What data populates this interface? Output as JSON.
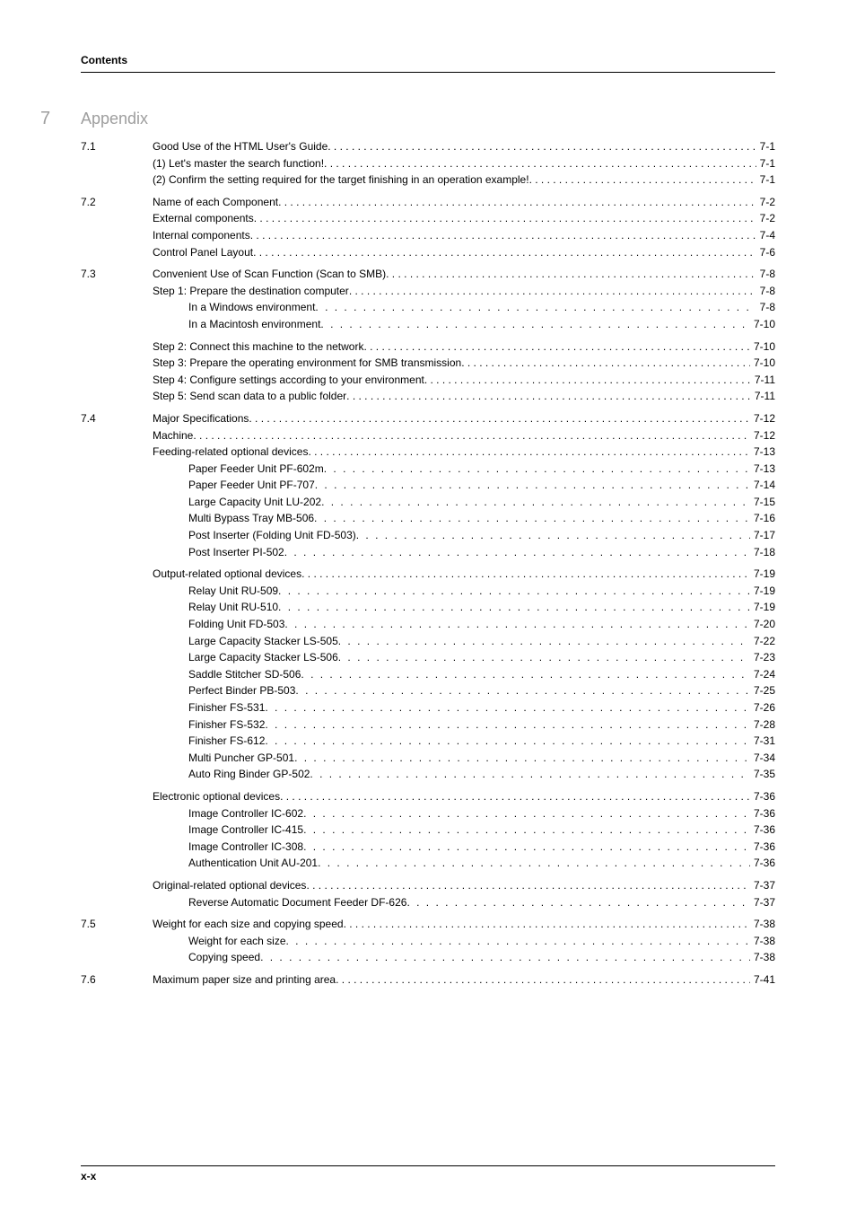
{
  "running_head": "Contents",
  "chapter": {
    "number": "7",
    "title": "Appendix"
  },
  "footer_page": "x-x",
  "colors": {
    "chapter_gray": "#9e9e9e",
    "text": "#000000",
    "bg": "#ffffff"
  },
  "entries": [
    {
      "type": "section",
      "num": "7.1",
      "label": "Good Use of the HTML User's Guide",
      "page": "7-1",
      "gap": false
    },
    {
      "type": "sub1",
      "label": "(1) Let's master the search function!",
      "page": "7-1"
    },
    {
      "type": "sub1",
      "label": "(2) Confirm the setting required for the target finishing in an operation example!",
      "page": "7-1"
    },
    {
      "type": "section",
      "num": "7.2",
      "label": "Name of each Component",
      "page": "7-2",
      "gap": true
    },
    {
      "type": "sub1",
      "label": "External components",
      "page": "7-2"
    },
    {
      "type": "sub1",
      "label": "Internal components",
      "page": "7-4"
    },
    {
      "type": "sub1",
      "label": "Control Panel Layout",
      "page": "7-6"
    },
    {
      "type": "section",
      "num": "7.3",
      "label": "Convenient Use of Scan Function (Scan to SMB)",
      "page": "7-8",
      "gap": true
    },
    {
      "type": "sub1",
      "label": "Step 1: Prepare the destination computer",
      "page": "7-8"
    },
    {
      "type": "sub2",
      "label": "In a Windows environment",
      "page": "7-8"
    },
    {
      "type": "sub2",
      "label": "In a Macintosh environment",
      "page": "7-10"
    },
    {
      "type": "sub1",
      "label": "Step 2: Connect this machine to the network",
      "page": "7-10",
      "gap": true
    },
    {
      "type": "sub1",
      "label": "Step 3: Prepare the operating environment for SMB transmission",
      "page": "7-10"
    },
    {
      "type": "sub1",
      "label": "Step 4: Configure settings according to your environment",
      "page": "7-11"
    },
    {
      "type": "sub1",
      "label": "Step 5: Send scan data to a public folder",
      "page": "7-11"
    },
    {
      "type": "section",
      "num": "7.4",
      "label": "Major Specifications",
      "page": "7-12",
      "gap": true
    },
    {
      "type": "sub1",
      "label": "Machine",
      "page": "7-12"
    },
    {
      "type": "sub1",
      "label": "Feeding-related optional devices",
      "page": "7-13"
    },
    {
      "type": "sub2",
      "label": "Paper Feeder Unit PF-602m",
      "page": "7-13"
    },
    {
      "type": "sub2",
      "label": "Paper Feeder Unit PF-707",
      "page": "7-14"
    },
    {
      "type": "sub2",
      "label": "Large Capacity Unit LU-202",
      "page": "7-15"
    },
    {
      "type": "sub2",
      "label": "Multi Bypass Tray MB-506",
      "page": "7-16"
    },
    {
      "type": "sub2",
      "label": "Post Inserter (Folding Unit FD-503)",
      "page": "7-17"
    },
    {
      "type": "sub2",
      "label": "Post Inserter PI-502",
      "page": "7-18"
    },
    {
      "type": "sub1",
      "label": "Output-related optional devices",
      "page": "7-19",
      "gap": true
    },
    {
      "type": "sub2",
      "label": "Relay Unit RU-509",
      "page": "7-19"
    },
    {
      "type": "sub2",
      "label": "Relay Unit RU-510",
      "page": "7-19"
    },
    {
      "type": "sub2",
      "label": "Folding Unit FD-503",
      "page": "7-20"
    },
    {
      "type": "sub2",
      "label": "Large Capacity Stacker LS-505",
      "page": "7-22"
    },
    {
      "type": "sub2",
      "label": "Large Capacity Stacker LS-506",
      "page": "7-23"
    },
    {
      "type": "sub2",
      "label": "Saddle Stitcher SD-506",
      "page": "7-24"
    },
    {
      "type": "sub2",
      "label": "Perfect Binder PB-503",
      "page": "7-25"
    },
    {
      "type": "sub2",
      "label": "Finisher FS-531",
      "page": "7-26"
    },
    {
      "type": "sub2",
      "label": "Finisher FS-532",
      "page": "7-28"
    },
    {
      "type": "sub2",
      "label": "Finisher FS-612",
      "page": "7-31"
    },
    {
      "type": "sub2",
      "label": "Multi Puncher GP-501",
      "page": "7-34"
    },
    {
      "type": "sub2",
      "label": "Auto Ring Binder GP-502",
      "page": "7-35"
    },
    {
      "type": "sub1",
      "label": "Electronic optional devices",
      "page": "7-36",
      "gap": true
    },
    {
      "type": "sub2",
      "label": "Image Controller IC-602",
      "page": "7-36"
    },
    {
      "type": "sub2",
      "label": "Image Controller IC-415",
      "page": "7-36"
    },
    {
      "type": "sub2",
      "label": "Image Controller IC-308",
      "page": "7-36"
    },
    {
      "type": "sub2",
      "label": "Authentication Unit AU-201",
      "page": "7-36"
    },
    {
      "type": "sub1",
      "label": "Original-related optional devices",
      "page": "7-37",
      "gap": true
    },
    {
      "type": "sub2",
      "label": "Reverse Automatic Document Feeder DF-626",
      "page": "7-37"
    },
    {
      "type": "section",
      "num": "7.5",
      "label": "Weight for each size and copying speed",
      "page": "7-38",
      "gap": true
    },
    {
      "type": "sub2",
      "label": "Weight for each size",
      "page": "7-38"
    },
    {
      "type": "sub2",
      "label": "Copying speed",
      "page": "7-38"
    },
    {
      "type": "section",
      "num": "7.6",
      "label": "Maximum paper size and printing area",
      "page": "7-41",
      "gap": true
    }
  ]
}
